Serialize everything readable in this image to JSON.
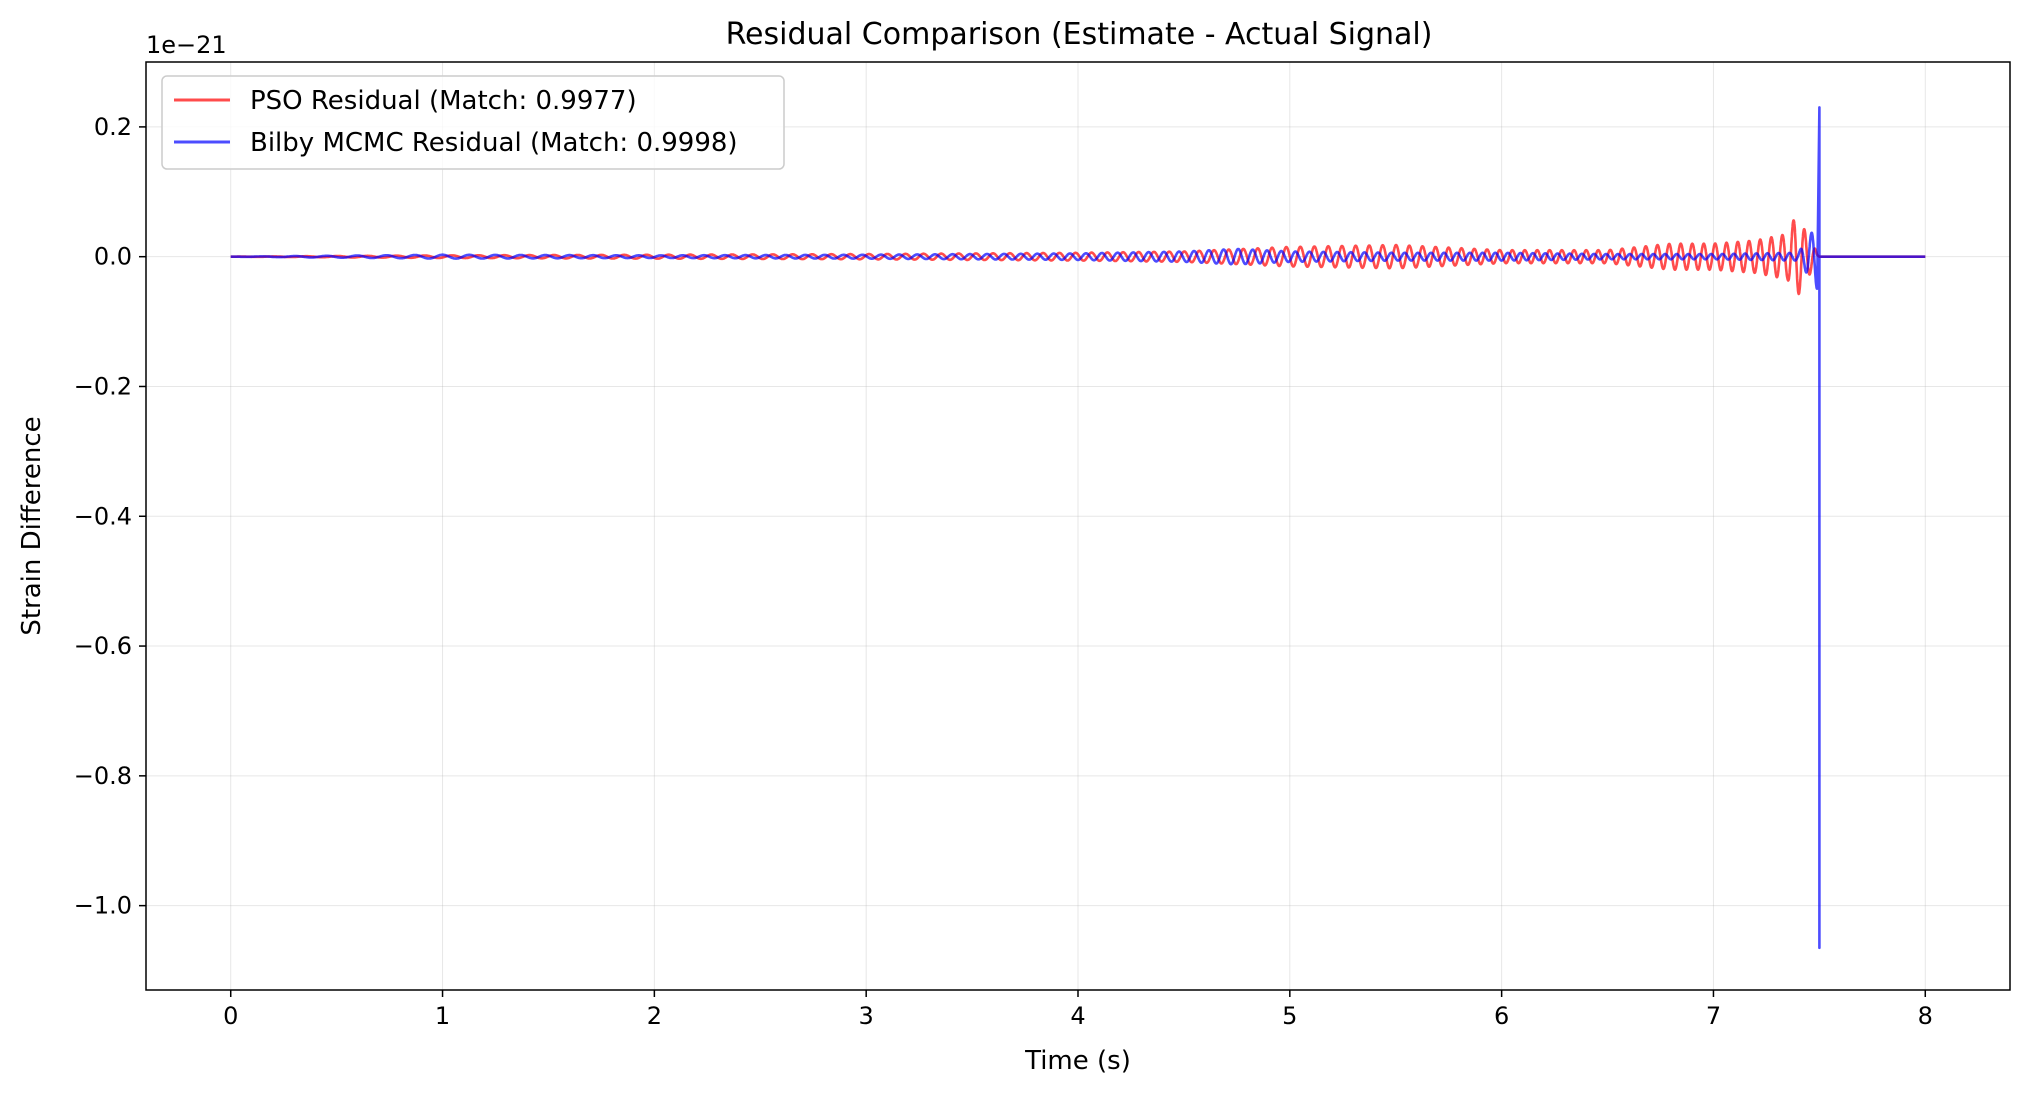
{
  "chart_data": {
    "type": "line",
    "title": "Residual Comparison (Estimate - Actual Signal)",
    "xlabel": "Time (s)",
    "ylabel": "Strain Difference",
    "y_offset_label": "1e−21",
    "xlim": [
      -0.4,
      8.4
    ],
    "ylim": [
      -1.13,
      0.3
    ],
    "x_ticks": [
      0,
      1,
      2,
      3,
      4,
      5,
      6,
      7,
      8
    ],
    "x_tick_labels": [
      "0",
      "1",
      "2",
      "3",
      "4",
      "5",
      "6",
      "7",
      "8"
    ],
    "y_ticks": [
      0.2,
      0.0,
      -0.2,
      -0.4,
      -0.6,
      -0.8,
      -1.0
    ],
    "y_tick_labels": [
      "0.2",
      "0.0",
      "−0.2",
      "−0.4",
      "−0.6",
      "−0.8",
      "−1.0"
    ],
    "grid": true,
    "legend_position": "top-left",
    "series": [
      {
        "name": "PSO Residual (Match: 0.9977)",
        "color": "#ff0000",
        "x": [
          0.0,
          1.0,
          2.0,
          3.0,
          4.0,
          4.5,
          5.0,
          5.5,
          6.0,
          6.5,
          6.8,
          7.0,
          7.2,
          7.35,
          7.39,
          7.45,
          7.5,
          8.0
        ],
        "y": [
          0.0,
          0.002,
          0.003,
          0.004,
          0.006,
          0.008,
          0.015,
          0.018,
          0.01,
          0.01,
          0.02,
          0.02,
          0.025,
          0.035,
          0.065,
          0.03,
          0.0,
          0.0
        ]
      },
      {
        "name": "Bilby MCMC Residual (Match: 0.9998)",
        "color": "#0000ff",
        "x": [
          0.0,
          1.0,
          2.0,
          3.0,
          4.0,
          4.5,
          4.75,
          5.0,
          5.5,
          6.0,
          6.5,
          7.0,
          7.4,
          7.49,
          7.5,
          7.5,
          7.51,
          8.0
        ],
        "y": [
          0.0,
          0.003,
          0.002,
          0.003,
          0.005,
          0.008,
          0.012,
          0.008,
          0.006,
          0.006,
          0.004,
          0.004,
          0.006,
          0.05,
          0.23,
          -1.065,
          0.0,
          0.0
        ]
      }
    ]
  }
}
